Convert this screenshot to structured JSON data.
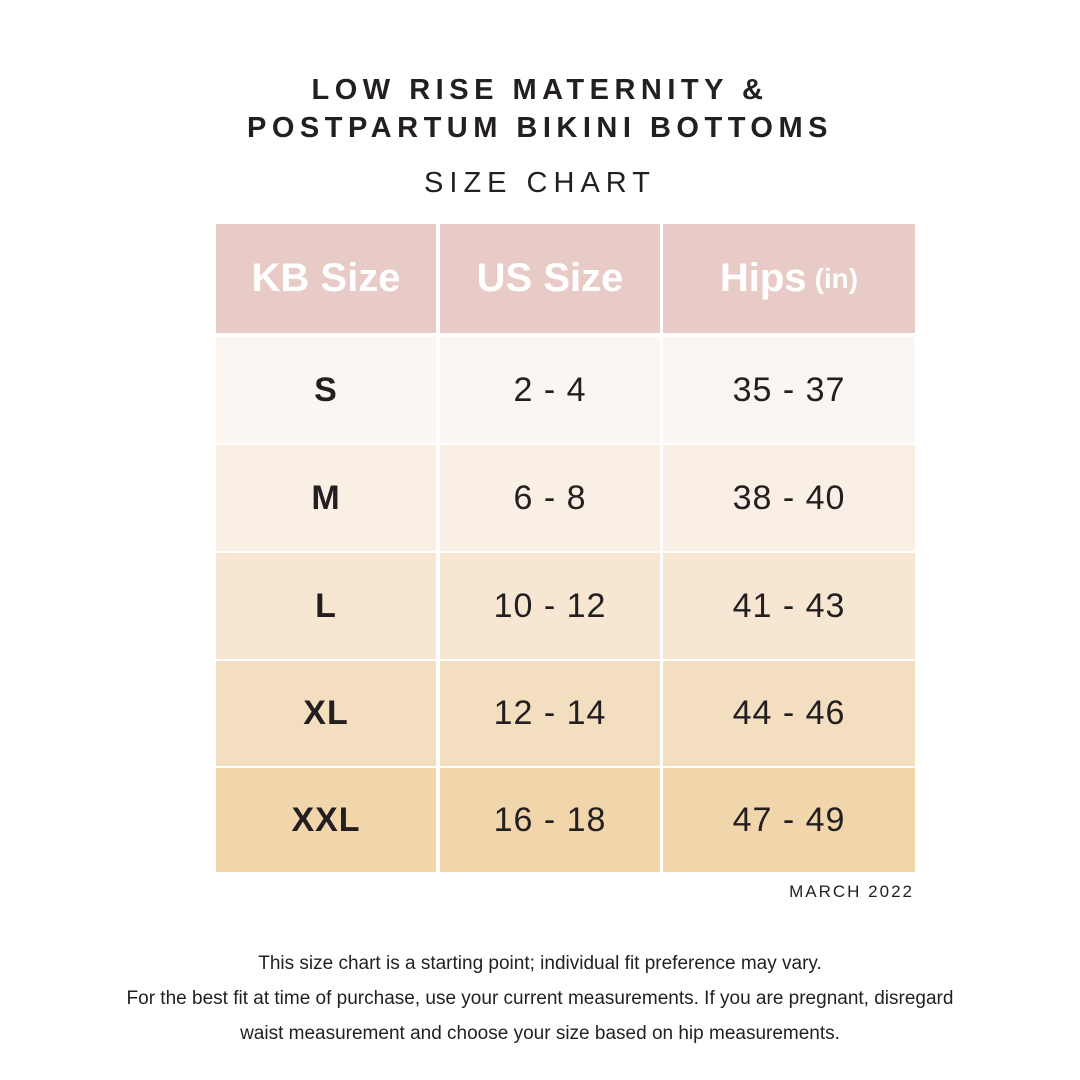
{
  "title": {
    "line1": "LOW RISE MATERNITY &",
    "line2": "POSTPARTUM BIKINI BOTTOMS"
  },
  "subtitle": "SIZE CHART",
  "table": {
    "headers": {
      "kb_size": "KB Size",
      "us_size": "US Size",
      "hips": "Hips",
      "hips_unit": "(in)"
    },
    "rows": [
      {
        "kb": "S",
        "us": "2 - 4",
        "hips": "35 - 37"
      },
      {
        "kb": "M",
        "us": "6 - 8",
        "hips": "38 - 40"
      },
      {
        "kb": "L",
        "us": "10 - 12",
        "hips": "41 - 43"
      },
      {
        "kb": "XL",
        "us": "12 - 14",
        "hips": "44 - 46"
      },
      {
        "kb": "XXL",
        "us": "16 - 18",
        "hips": "47 - 49"
      }
    ],
    "colors": {
      "header_bg": "#e8cbc6",
      "row_bgs": [
        "#fbf6f1",
        "#f9efe4",
        "#f6e6d2",
        "#f3dfc0",
        "#f1d6ab"
      ]
    }
  },
  "date": "MARCH 2022",
  "notes": [
    "This size chart is a starting point; individual fit preference may vary.",
    "For the best fit at time of purchase, use your current measurements. If you are pregnant, disregard",
    "waist measurement and choose your size based on hip measurements."
  ]
}
